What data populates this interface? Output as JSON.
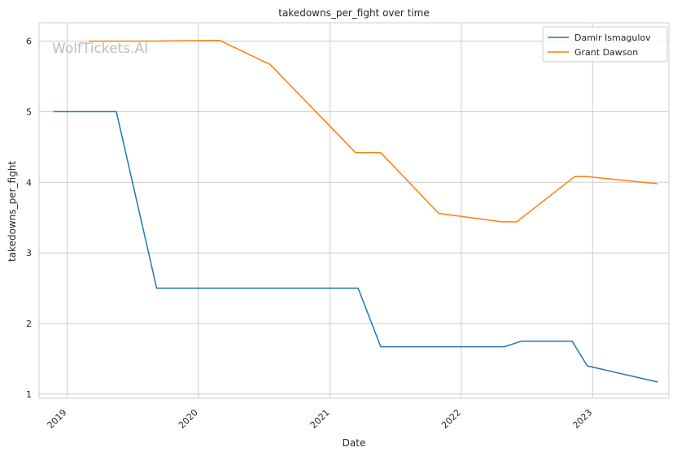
{
  "watermark": "WolfTickets.AI",
  "chart_data": {
    "type": "line",
    "title": "takedowns_per_fight over time",
    "xlabel": "Date",
    "ylabel": "takedowns_per_fight",
    "x_axis": {
      "type": "date",
      "min": "2018-10-15",
      "max": "2023-08-01",
      "ticks": [
        "2019-01-01",
        "2020-01-01",
        "2021-01-01",
        "2022-01-01",
        "2023-01-01"
      ],
      "tick_labels": [
        "2019",
        "2020",
        "2021",
        "2022",
        "2023"
      ]
    },
    "ylim": [
      0.94,
      6.26
    ],
    "y_ticks": [
      1,
      2,
      3,
      4,
      5,
      6
    ],
    "grid": true,
    "legend_position": "top-right",
    "series": [
      {
        "name": "Damir Ismagulov",
        "color": "#1f77b4",
        "points": [
          [
            "2018-11-24",
            5.0
          ],
          [
            "2019-05-18",
            5.0
          ],
          [
            "2019-09-07",
            2.5
          ],
          [
            "2021-03-20",
            2.5
          ],
          [
            "2021-05-22",
            1.67
          ],
          [
            "2022-04-30",
            1.67
          ],
          [
            "2022-06-18",
            1.75
          ],
          [
            "2022-11-05",
            1.75
          ],
          [
            "2022-12-17",
            1.4
          ],
          [
            "2023-07-01",
            1.17
          ]
        ]
      },
      {
        "name": "Grant Dawson",
        "color": "#ff7f0e",
        "points": [
          [
            "2019-03-02",
            6.0
          ],
          [
            "2019-08-01",
            6.0
          ],
          [
            "2020-02-29",
            6.01
          ],
          [
            "2020-07-18",
            5.67
          ],
          [
            "2021-03-13",
            4.42
          ],
          [
            "2021-05-22",
            4.42
          ],
          [
            "2021-10-30",
            3.56
          ],
          [
            "2022-04-23",
            3.44
          ],
          [
            "2022-06-04",
            3.44
          ],
          [
            "2022-11-12",
            4.08
          ],
          [
            "2022-12-17",
            4.08
          ],
          [
            "2023-07-01",
            3.98
          ]
        ]
      }
    ]
  }
}
